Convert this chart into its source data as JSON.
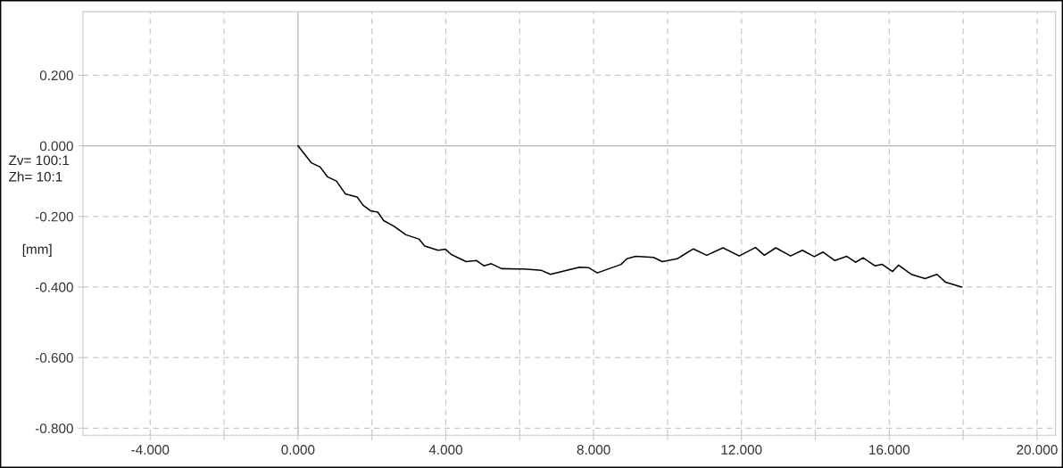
{
  "chart_data": {
    "type": "line",
    "ylabel": "[mm]",
    "annotations": [
      "Zv= 100:1",
      "Zh= 10:1"
    ],
    "x": [
      0,
      0.36,
      0.6,
      0.8,
      1.04,
      1.28,
      1.6,
      1.76,
      1.96,
      2.16,
      2.32,
      2.6,
      2.92,
      3.27,
      3.43,
      3.79,
      3.99,
      4.15,
      4.55,
      4.83,
      5.03,
      5.23,
      5.51,
      5.95,
      6.11,
      6.59,
      6.83,
      7.15,
      7.62,
      7.86,
      8.1,
      8.42,
      8.74,
      8.9,
      9.14,
      9.62,
      9.86,
      10.26,
      10.7,
      11.06,
      11.5,
      11.94,
      12.38,
      12.62,
      12.93,
      13.33,
      13.65,
      13.97,
      14.21,
      14.53,
      14.85,
      15.09,
      15.29,
      15.61,
      15.81,
      16.09,
      16.25,
      16.61,
      16.97,
      17.29,
      17.52,
      17.96
    ],
    "series": [
      {
        "color": "#000000",
        "values": [
          0,
          -0.048,
          -0.06,
          -0.088,
          -0.1,
          -0.136,
          -0.145,
          -0.168,
          -0.184,
          -0.188,
          -0.212,
          -0.228,
          -0.252,
          -0.264,
          -0.284,
          -0.296,
          -0.293,
          -0.308,
          -0.328,
          -0.325,
          -0.34,
          -0.334,
          -0.348,
          -0.349,
          -0.349,
          -0.353,
          -0.364,
          -0.356,
          -0.344,
          -0.345,
          -0.36,
          -0.348,
          -0.336,
          -0.32,
          -0.313,
          -0.316,
          -0.328,
          -0.32,
          -0.292,
          -0.31,
          -0.289,
          -0.312,
          -0.288,
          -0.31,
          -0.289,
          -0.312,
          -0.296,
          -0.314,
          -0.301,
          -0.325,
          -0.313,
          -0.33,
          -0.317,
          -0.34,
          -0.336,
          -0.356,
          -0.338,
          -0.365,
          -0.376,
          -0.364,
          -0.386,
          -0.4
        ]
      }
    ],
    "xlim": [
      -5.82,
      20.5
    ],
    "ylim": [
      -0.82,
      0.38
    ],
    "xticks": [
      {
        "value": -4,
        "label": "-4.000"
      },
      {
        "value": -2,
        "label": null
      },
      {
        "value": 0,
        "label": "0.000"
      },
      {
        "value": 2,
        "label": null
      },
      {
        "value": 4,
        "label": "4.000"
      },
      {
        "value": 6,
        "label": null
      },
      {
        "value": 8,
        "label": "8.000"
      },
      {
        "value": 10,
        "label": null
      },
      {
        "value": 12,
        "label": "12.000"
      },
      {
        "value": 14,
        "label": null
      },
      {
        "value": 16,
        "label": "16.000"
      },
      {
        "value": 18,
        "label": null
      },
      {
        "value": 20,
        "label": "20.000"
      }
    ],
    "yticks": [
      {
        "value": 0.2,
        "label": "0.200"
      },
      {
        "value": 0,
        "label": "0.000"
      },
      {
        "value": -0.2,
        "label": "-0.200"
      },
      {
        "value": -0.4,
        "label": "-0.400"
      },
      {
        "value": -0.6,
        "label": "-0.600"
      },
      {
        "value": -0.8,
        "label": "-0.800"
      }
    ],
    "grid": true,
    "line_style": "solid",
    "marker": "none",
    "legend": false
  }
}
